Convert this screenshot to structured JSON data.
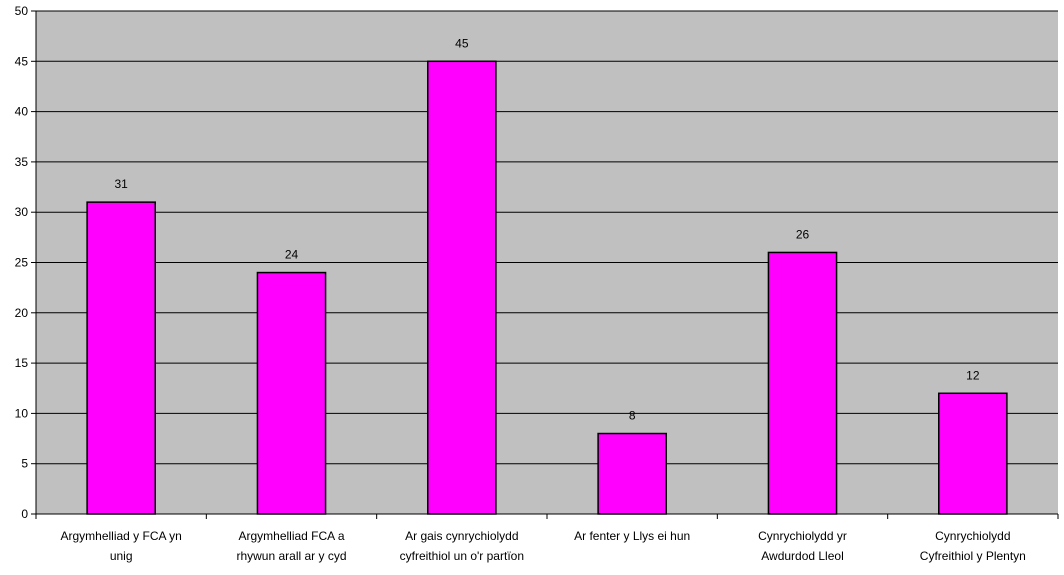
{
  "chart_data": {
    "type": "bar",
    "categories": [
      [
        "Argymhelliad y FCA yn",
        "unig"
      ],
      [
        "Argymhelliad FCA a",
        "rhywun arall ar y cyd"
      ],
      [
        "Ar gais cynrychiolydd",
        "cyfreithiol un o'r partïon"
      ],
      [
        "Ar fenter y Llys ei hun"
      ],
      [
        "Cynrychiolydd yr",
        "Awdurdod Lleol"
      ],
      [
        "Cynrychiolydd",
        "Cyfreithiol y Plentyn"
      ]
    ],
    "values": [
      31,
      24,
      45,
      8,
      26,
      12
    ],
    "ylim": [
      0,
      50
    ],
    "yticks": [
      0,
      5,
      10,
      15,
      20,
      25,
      30,
      35,
      40,
      45,
      50
    ],
    "grid": true,
    "colors": {
      "plot_background": "#c0c0c0",
      "bar_fill": "#ff00ff",
      "bar_stroke": "#000000",
      "gridline": "#000000"
    }
  }
}
